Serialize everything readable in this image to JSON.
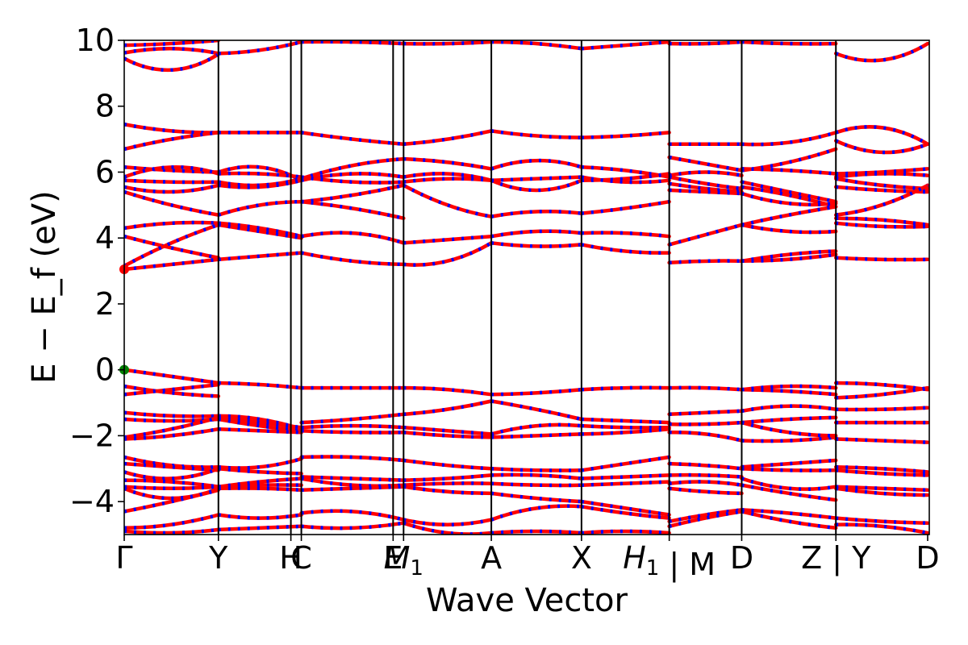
{
  "chart_data": {
    "type": "line",
    "xlabel": "Wave Vector",
    "ylabel": "E − E_f (eV)",
    "ylim": [
      -5,
      10
    ],
    "yticks": [
      -4,
      -2,
      0,
      2,
      4,
      6,
      8,
      10
    ],
    "ytick_labels": [
      "−4",
      "−2",
      "0",
      "2",
      "4",
      "6",
      "8",
      "10"
    ],
    "grid": false,
    "xlim": [
      0,
      10
    ],
    "kpoint_positions": [
      0,
      1.17,
      2.07,
      2.2,
      3.34,
      3.47,
      4.56,
      5.68,
      6.77,
      7.67,
      8.84,
      9.98
    ],
    "kpoint_labels": [
      "Γ",
      "Y",
      "H",
      "C",
      "E",
      "M1",
      "A",
      "X",
      "H1 | M",
      "D",
      "Z | Y",
      "D"
    ],
    "colors": {
      "spin_up": "#ff0000",
      "spin_down": "#0000ff",
      "vbm_marker": "#008000",
      "cbm_marker": "#ff0000"
    },
    "markers": [
      {
        "name": "VBM",
        "x": 0,
        "y": 0,
        "color": "#008000"
      },
      {
        "name": "CBM",
        "x": 0,
        "y": 3.05,
        "color": "#ff0000"
      }
    ],
    "segments": [
      {
        "x_start": 0,
        "x_end": 1.17,
        "bands": [
          [
            9.85,
            9.9,
            10.0
          ],
          [
            9.62,
            9.75,
            9.6
          ],
          [
            9.45,
            9.1,
            9.58
          ],
          [
            7.45,
            7.25,
            7.2
          ],
          [
            6.7,
            7.0,
            7.2
          ],
          [
            6.15,
            6.05,
            6.0
          ],
          [
            5.85,
            6.15,
            5.95
          ],
          [
            5.75,
            5.7,
            5.7
          ],
          [
            5.55,
            5.4,
            5.6
          ],
          [
            5.4,
            5.0,
            4.7
          ],
          [
            4.3,
            4.45,
            4.45
          ],
          [
            4.05,
            3.7,
            3.4
          ],
          [
            3.15,
            3.85,
            4.4
          ],
          [
            3.05,
            3.2,
            3.35
          ],
          [
            0.0,
            -0.2,
            -0.4
          ],
          [
            -0.5,
            -0.7,
            -0.8
          ],
          [
            -0.75,
            -0.6,
            -0.45
          ],
          [
            -1.3,
            -1.4,
            -1.4
          ],
          [
            -1.5,
            -1.55,
            -1.5
          ],
          [
            -2.05,
            -1.8,
            -1.45
          ],
          [
            -2.1,
            -2.0,
            -1.8
          ],
          [
            -2.65,
            -2.9,
            -2.95
          ],
          [
            -2.85,
            -2.95,
            -3.05
          ],
          [
            -3.1,
            -3.3,
            -3.0
          ],
          [
            -3.35,
            -3.4,
            -3.55
          ],
          [
            -3.55,
            -3.6,
            -3.55
          ],
          [
            -3.6,
            -3.9,
            -3.6
          ],
          [
            -4.3,
            -4.0,
            -3.65
          ],
          [
            -4.8,
            -4.7,
            -4.4
          ],
          [
            -4.9,
            -4.95,
            -4.85
          ]
        ]
      },
      {
        "x_start": 1.17,
        "x_end": 2.2,
        "bands": [
          [
            9.6,
            9.7,
            9.95
          ],
          [
            7.2,
            7.2,
            7.2
          ],
          [
            6.0,
            6.15,
            5.75
          ],
          [
            5.95,
            5.95,
            5.85
          ],
          [
            5.7,
            5.6,
            5.8
          ],
          [
            5.6,
            5.55,
            5.75
          ],
          [
            4.7,
            5.0,
            5.1
          ],
          [
            4.45,
            4.3,
            4.05
          ],
          [
            4.4,
            4.2,
            4.0
          ],
          [
            3.35,
            3.45,
            3.55
          ],
          [
            -0.4,
            -0.45,
            -0.55
          ],
          [
            -1.4,
            -1.5,
            -1.8
          ],
          [
            -1.45,
            -1.6,
            -1.75
          ],
          [
            -1.5,
            -1.7,
            -1.85
          ],
          [
            -1.8,
            -1.85,
            -1.9
          ],
          [
            -2.95,
            -2.95,
            -2.7
          ],
          [
            -3.0,
            -3.1,
            -3.15
          ],
          [
            -3.55,
            -3.4,
            -3.3
          ],
          [
            -3.55,
            -3.5,
            -3.5
          ],
          [
            -3.6,
            -3.6,
            -3.65
          ],
          [
            -4.4,
            -4.5,
            -4.4
          ],
          [
            -4.85,
            -4.8,
            -4.75
          ]
        ]
      },
      {
        "x_start": 2.2,
        "x_end": 3.47,
        "bands": [
          [
            9.95,
            9.95,
            9.9
          ],
          [
            7.2,
            7.0,
            6.85
          ],
          [
            5.8,
            6.2,
            6.4
          ],
          [
            5.75,
            5.95,
            5.85
          ],
          [
            5.85,
            5.7,
            5.7
          ],
          [
            5.1,
            5.3,
            5.6
          ],
          [
            5.1,
            4.9,
            4.6
          ],
          [
            4.05,
            4.15,
            3.85
          ],
          [
            3.55,
            3.3,
            3.2
          ],
          [
            -0.55,
            -0.55,
            -0.55
          ],
          [
            -1.6,
            -1.5,
            -1.35
          ],
          [
            -1.75,
            -1.7,
            -1.75
          ],
          [
            -1.85,
            -1.9,
            -1.9
          ],
          [
            -2.65,
            -2.65,
            -2.75
          ],
          [
            -3.25,
            -3.3,
            -3.35
          ],
          [
            -3.3,
            -3.5,
            -3.5
          ],
          [
            -3.65,
            -3.6,
            -3.55
          ],
          [
            -4.35,
            -4.3,
            -4.55
          ],
          [
            -4.75,
            -4.8,
            -4.65
          ]
        ]
      },
      {
        "x_start": 3.47,
        "x_end": 4.56,
        "bands": [
          [
            9.9,
            9.9,
            9.95
          ],
          [
            6.85,
            7.0,
            7.25
          ],
          [
            6.4,
            6.3,
            6.1
          ],
          [
            5.85,
            5.95,
            5.75
          ],
          [
            5.7,
            5.8,
            5.75
          ],
          [
            5.6,
            5.0,
            4.65
          ],
          [
            3.85,
            3.95,
            4.05
          ],
          [
            3.2,
            3.3,
            3.85
          ],
          [
            -0.55,
            -0.6,
            -0.75
          ],
          [
            -1.35,
            -1.2,
            -0.95
          ],
          [
            -1.75,
            -1.85,
            -1.95
          ],
          [
            -1.9,
            -2.0,
            -2.05
          ],
          [
            -2.75,
            -2.9,
            -3.0
          ],
          [
            -3.35,
            -3.3,
            -3.2
          ],
          [
            -3.5,
            -3.45,
            -3.45
          ],
          [
            -3.55,
            -3.7,
            -3.75
          ],
          [
            -4.55,
            -4.7,
            -4.55
          ],
          [
            -4.65,
            -4.95,
            -4.95
          ]
        ]
      },
      {
        "x_start": 4.56,
        "x_end": 5.68,
        "bands": [
          [
            9.95,
            9.9,
            9.75
          ],
          [
            7.25,
            7.1,
            7.05
          ],
          [
            6.1,
            6.35,
            6.15
          ],
          [
            5.75,
            5.45,
            5.75
          ],
          [
            5.75,
            5.8,
            5.85
          ],
          [
            4.65,
            4.8,
            4.75
          ],
          [
            4.05,
            4.2,
            4.15
          ],
          [
            3.85,
            3.75,
            3.8
          ],
          [
            -0.75,
            -0.7,
            -0.6
          ],
          [
            -0.95,
            -1.2,
            -1.5
          ],
          [
            -1.95,
            -1.7,
            -1.7
          ],
          [
            -2.05,
            -2.0,
            -1.95
          ],
          [
            -3.0,
            -3.05,
            -3.05
          ],
          [
            -3.2,
            -3.2,
            -3.3
          ],
          [
            -3.45,
            -3.5,
            -3.5
          ],
          [
            -3.75,
            -3.9,
            -4.0
          ],
          [
            -4.55,
            -4.2,
            -4.15
          ],
          [
            -4.95,
            -4.9,
            -4.95
          ]
        ]
      },
      {
        "x_start": 5.68,
        "x_end": 6.77,
        "bands": [
          [
            9.75,
            9.85,
            9.95
          ],
          [
            7.05,
            7.1,
            7.2
          ],
          [
            6.15,
            6.05,
            5.85
          ],
          [
            5.75,
            5.8,
            5.95
          ],
          [
            5.85,
            5.7,
            5.75
          ],
          [
            4.75,
            4.9,
            5.1
          ],
          [
            4.15,
            4.15,
            4.05
          ],
          [
            3.8,
            3.6,
            3.55
          ],
          [
            -0.6,
            -0.55,
            -0.55
          ],
          [
            -1.5,
            -1.55,
            -1.6
          ],
          [
            -1.7,
            -1.75,
            -1.75
          ],
          [
            -1.95,
            -1.9,
            -1.8
          ],
          [
            -3.05,
            -2.85,
            -2.65
          ],
          [
            -3.3,
            -3.25,
            -3.2
          ],
          [
            -3.5,
            -3.45,
            -3.4
          ],
          [
            -4.0,
            -4.2,
            -4.4
          ],
          [
            -4.15,
            -4.35,
            -4.5
          ],
          [
            -4.95,
            -4.9,
            -4.95
          ]
        ]
      },
      {
        "x_start": 6.77,
        "x_end": 7.67,
        "bands": [
          [
            9.9,
            9.9,
            9.95
          ],
          [
            6.85,
            6.85,
            6.85
          ],
          [
            6.45,
            6.25,
            6.05
          ],
          [
            5.9,
            6.0,
            5.9
          ],
          [
            5.85,
            5.65,
            5.5
          ],
          [
            5.65,
            5.5,
            5.4
          ],
          [
            5.45,
            5.4,
            5.35
          ],
          [
            3.8,
            4.1,
            4.4
          ],
          [
            3.25,
            3.3,
            3.3
          ],
          [
            -0.55,
            -0.55,
            -0.6
          ],
          [
            -1.35,
            -1.3,
            -1.25
          ],
          [
            -1.65,
            -1.65,
            -1.6
          ],
          [
            -1.9,
            -1.95,
            -2.15
          ],
          [
            -2.85,
            -2.9,
            -3.0
          ],
          [
            -3.2,
            -3.2,
            -3.25
          ],
          [
            -3.45,
            -3.4,
            -3.5
          ],
          [
            -3.6,
            -3.7,
            -3.75
          ],
          [
            -4.6,
            -4.4,
            -4.25
          ],
          [
            -4.75,
            -4.5,
            -4.3
          ]
        ]
      },
      {
        "x_start": 7.67,
        "x_end": 8.84,
        "bands": [
          [
            9.95,
            9.9,
            9.9
          ],
          [
            6.85,
            6.9,
            7.2
          ],
          [
            6.05,
            6.3,
            6.7
          ],
          [
            6.1,
            6.05,
            5.95
          ],
          [
            5.7,
            5.4,
            5.1
          ],
          [
            5.55,
            5.3,
            4.95
          ],
          [
            5.35,
            5.05,
            5.05
          ],
          [
            4.4,
            4.7,
            4.95
          ],
          [
            4.4,
            4.2,
            4.2
          ],
          [
            3.3,
            3.5,
            3.6
          ],
          [
            3.3,
            3.35,
            3.5
          ],
          [
            -0.6,
            -0.65,
            -0.75
          ],
          [
            -0.6,
            -0.5,
            -0.55
          ],
          [
            -1.25,
            -1.1,
            -1.2
          ],
          [
            -1.6,
            -1.5,
            -1.45
          ],
          [
            -2.15,
            -2.15,
            -2.05
          ],
          [
            -1.6,
            -1.9,
            -2.0
          ],
          [
            -2.95,
            -2.85,
            -2.75
          ],
          [
            -3.0,
            -3.05,
            -3.05
          ],
          [
            -3.3,
            -3.6,
            -3.55
          ],
          [
            -3.5,
            -3.75,
            -3.95
          ],
          [
            -4.25,
            -4.35,
            -4.5
          ],
          [
            -4.3,
            -4.6,
            -4.8
          ]
        ]
      },
      {
        "x_start": 8.84,
        "x_end": 9.98,
        "bands": [
          [
            9.6,
            9.4,
            9.9
          ],
          [
            7.2,
            7.35,
            6.85
          ],
          [
            6.95,
            6.6,
            6.85
          ],
          [
            5.95,
            6.0,
            6.1
          ],
          [
            5.85,
            5.95,
            5.9
          ],
          [
            5.8,
            5.6,
            5.5
          ],
          [
            5.55,
            5.45,
            5.4
          ],
          [
            4.7,
            5.0,
            5.6
          ],
          [
            4.6,
            4.55,
            4.4
          ],
          [
            4.45,
            4.35,
            4.35
          ],
          [
            3.4,
            3.35,
            3.35
          ],
          [
            -0.4,
            -0.45,
            -0.6
          ],
          [
            -0.85,
            -0.75,
            -0.55
          ],
          [
            -1.2,
            -1.2,
            -1.15
          ],
          [
            -1.6,
            -1.6,
            -1.6
          ],
          [
            -2.1,
            -2.15,
            -2.2
          ],
          [
            -2.95,
            -3.0,
            -3.1
          ],
          [
            -3.05,
            -3.15,
            -3.2
          ],
          [
            -3.55,
            -3.6,
            -3.65
          ],
          [
            -3.6,
            -3.75,
            -3.8
          ],
          [
            -4.5,
            -4.6,
            -4.65
          ],
          [
            -4.7,
            -4.75,
            -4.95
          ]
        ]
      }
    ]
  }
}
